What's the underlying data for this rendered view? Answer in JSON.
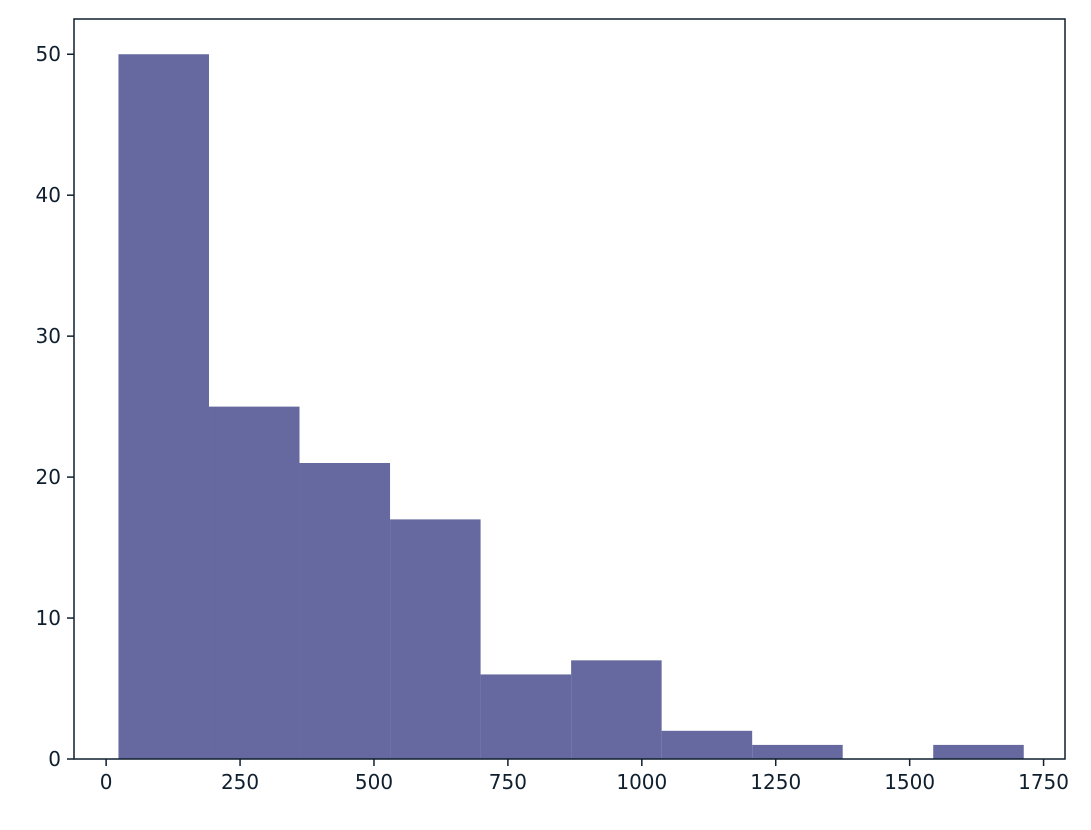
{
  "chart_data": {
    "type": "bar",
    "subtype": "histogram",
    "title": "",
    "xlabel": "",
    "ylabel": "",
    "bin_edges": [
      23,
      192,
      361,
      530,
      699,
      868,
      1037,
      1206,
      1375,
      1544,
      1713
    ],
    "values": [
      50,
      25,
      21,
      17,
      6,
      7,
      2,
      1,
      0,
      1
    ],
    "xlim": [
      -60,
      1790
    ],
    "ylim": [
      0,
      52.5
    ],
    "xticks": [
      0,
      250,
      500,
      750,
      1000,
      1250,
      1500,
      1750
    ],
    "xtick_labels": [
      "0",
      "250",
      "500",
      "750",
      "1000",
      "1250",
      "1500",
      "1750"
    ],
    "yticks": [
      0,
      10,
      20,
      30,
      40,
      50
    ],
    "ytick_labels": [
      "0",
      "10",
      "20",
      "30",
      "40",
      "50"
    ],
    "grid": false,
    "legend": "none",
    "colors": {
      "bar": "#65699f",
      "axis": "#0f1f2e",
      "text": "#0f1f2e",
      "background": "#ffffff"
    }
  }
}
